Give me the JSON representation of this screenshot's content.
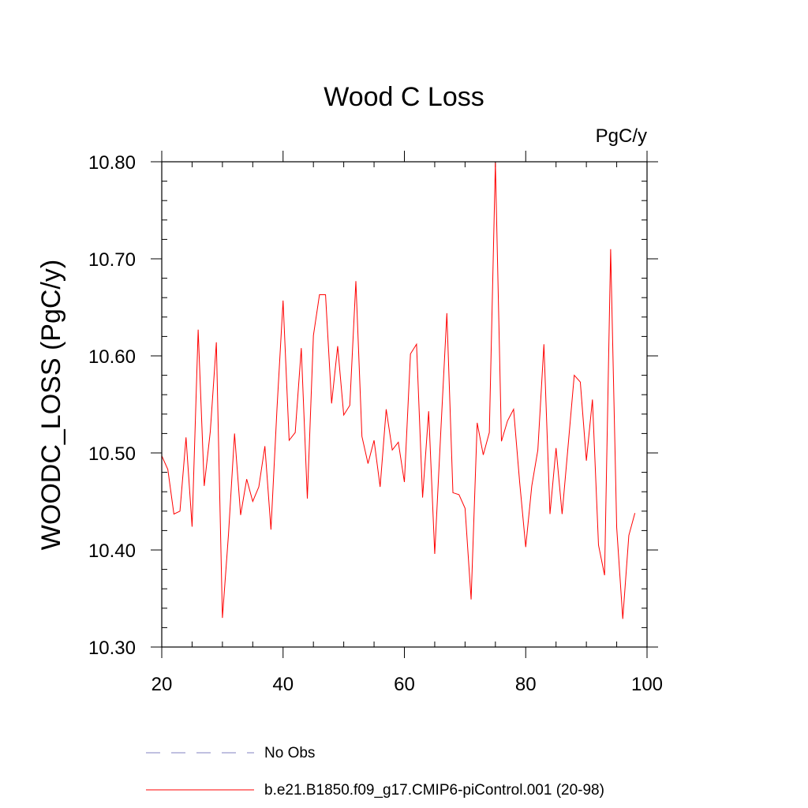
{
  "chart_data": {
    "type": "line",
    "title": "Wood C Loss",
    "units": "PgC/y",
    "ylabel": "WOODC_LOSS  (PgC/y)",
    "xlabel": "",
    "xlim": [
      20,
      100
    ],
    "ylim": [
      10.3,
      10.8
    ],
    "x_major_ticks": [
      20,
      40,
      60,
      80,
      100
    ],
    "x_tick_labels": [
      "20",
      "40",
      "60",
      "80",
      "100"
    ],
    "x_minor_step": 5,
    "y_major_ticks": [
      10.3,
      10.4,
      10.5,
      10.6,
      10.7,
      10.8
    ],
    "y_tick_labels": [
      "10.30",
      "10.40",
      "10.50",
      "10.60",
      "10.70",
      "10.80"
    ],
    "y_minor_step": 0.02,
    "grid": false,
    "series": [
      {
        "name": "b.e21.B1850.f09_g17.CMIP6-piControl.001 (20-98)",
        "color": "#ff0000",
        "x": [
          20,
          21,
          22,
          23,
          24,
          25,
          26,
          27,
          28,
          29,
          30,
          31,
          32,
          33,
          34,
          35,
          36,
          37,
          38,
          39,
          40,
          41,
          42,
          43,
          44,
          45,
          46,
          47,
          48,
          49,
          50,
          51,
          52,
          53,
          54,
          55,
          56,
          57,
          58,
          59,
          60,
          61,
          62,
          63,
          64,
          65,
          66,
          67,
          68,
          69,
          70,
          71,
          72,
          73,
          74,
          75,
          76,
          77,
          78,
          79,
          80,
          81,
          82,
          83,
          84,
          85,
          86,
          87,
          88,
          89,
          90,
          91,
          92,
          93,
          94,
          95,
          96,
          97,
          98
        ],
        "values": [
          10.497,
          10.483,
          10.437,
          10.44,
          10.516,
          10.424,
          10.627,
          10.466,
          10.522,
          10.614,
          10.33,
          10.416,
          10.52,
          10.436,
          10.473,
          10.45,
          10.465,
          10.507,
          10.421,
          10.546,
          10.657,
          10.513,
          10.521,
          10.608,
          10.453,
          10.621,
          10.663,
          10.663,
          10.551,
          10.61,
          10.539,
          10.549,
          10.677,
          10.517,
          10.489,
          10.513,
          10.465,
          10.545,
          10.503,
          10.511,
          10.47,
          10.602,
          10.612,
          10.454,
          10.543,
          10.396,
          10.522,
          10.644,
          10.459,
          10.457,
          10.443,
          10.349,
          10.531,
          10.498,
          10.521,
          10.799,
          10.512,
          10.533,
          10.545,
          10.47,
          10.403,
          10.466,
          10.503,
          10.612,
          10.437,
          10.505,
          10.437,
          10.508,
          10.58,
          10.573,
          10.492,
          10.555,
          10.405,
          10.374,
          10.71,
          10.423,
          10.329,
          10.415,
          10.438
        ]
      }
    ],
    "legend": [
      {
        "label": "No Obs",
        "style": "dashed",
        "color": "#8080c0"
      },
      {
        "label": "b.e21.B1850.f09_g17.CMIP6-piControl.001 (20-98)",
        "style": "solid",
        "color": "#ff0000"
      }
    ]
  }
}
